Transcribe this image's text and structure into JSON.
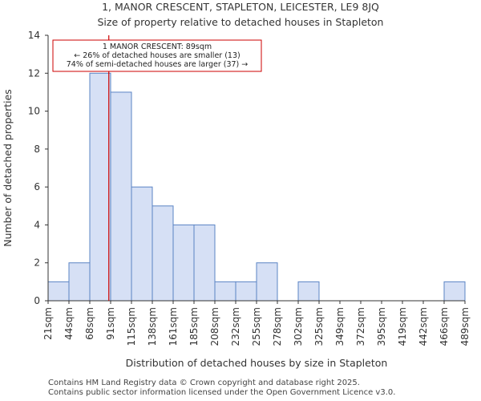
{
  "title_line1": "1, MANOR CRESCENT, STAPLETON, LEICESTER, LE9 8JQ",
  "title_line2": "Size of property relative to detached houses in Stapleton",
  "footer_line1": "Contains HM Land Registry data © Crown copyright and database right 2025.",
  "footer_line2": "Contains public sector information licensed under the Open Government Licence v3.0.",
  "colors": {
    "bar_fill": "#d6e0f5",
    "bar_stroke": "#5b84c4",
    "marker": "#cc0000",
    "axis": "#333333"
  },
  "chart_data": {
    "type": "bar",
    "xlabel": "Distribution of detached houses by size in Stapleton",
    "ylabel": "Number of detached properties",
    "ylim": [
      0,
      14
    ],
    "yticks": [
      0,
      2,
      4,
      6,
      8,
      10,
      12,
      14
    ],
    "bin_edges": [
      21,
      44,
      68,
      91,
      115,
      138,
      161,
      185,
      208,
      232,
      255,
      278,
      302,
      325,
      349,
      372,
      395,
      419,
      442,
      466,
      489
    ],
    "tick_labels": [
      "21sqm",
      "44sqm",
      "68sqm",
      "91sqm",
      "115sqm",
      "138sqm",
      "161sqm",
      "185sqm",
      "208sqm",
      "232sqm",
      "255sqm",
      "278sqm",
      "302sqm",
      "325sqm",
      "349sqm",
      "372sqm",
      "395sqm",
      "419sqm",
      "442sqm",
      "466sqm",
      "489sqm"
    ],
    "values": [
      1,
      2,
      12,
      11,
      6,
      5,
      4,
      4,
      1,
      1,
      2,
      0,
      1,
      0,
      0,
      0,
      0,
      0,
      0,
      1
    ],
    "marker_value": 89,
    "annotation": {
      "line1": "1 MANOR CRESCENT: 89sqm",
      "line2": "← 26% of detached houses are smaller (13)",
      "line3": "74% of semi-detached houses are larger (37) →"
    }
  }
}
